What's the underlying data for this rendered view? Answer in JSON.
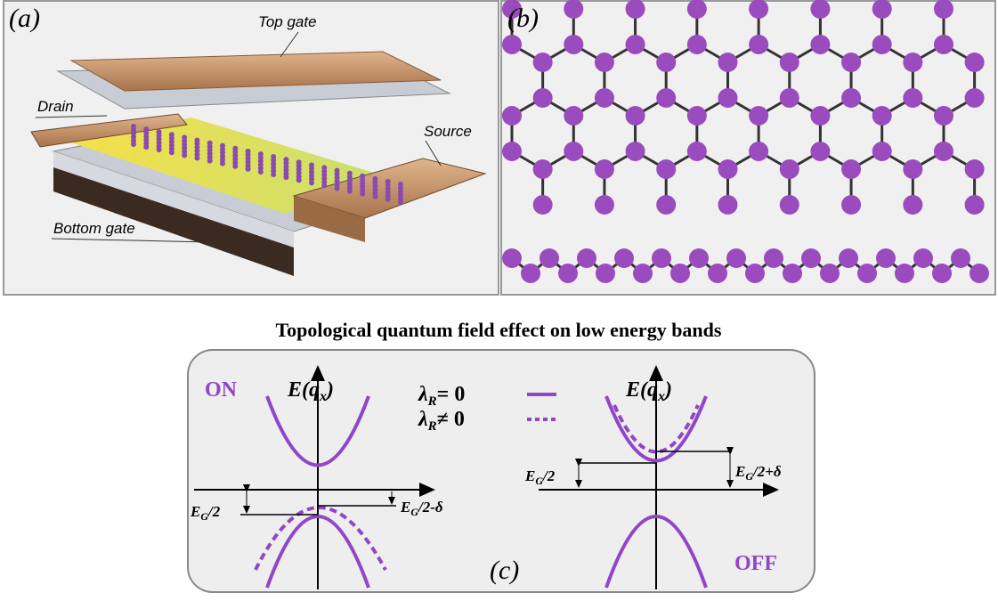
{
  "panel_a": {
    "label": "(a)",
    "top_gate": "Top gate",
    "drain": "Drain",
    "source": "Source",
    "bottom_gate": "Bottom gate"
  },
  "panel_b": {
    "label": "(b)"
  },
  "panel_c": {
    "title": "Topological quantum field effect on low energy bands",
    "label": "(c)",
    "axis_left": {
      "main": "E(q",
      "sub": "x",
      "tail": ")"
    },
    "axis_right": {
      "main": "E(q",
      "sub": "x",
      "tail": ")"
    },
    "on": "ON",
    "off": "OFF",
    "legend": [
      {
        "symbol": "λ",
        "sub": "R",
        "rest": "= 0"
      },
      {
        "symbol": "λ",
        "sub": "R",
        "rest": "≠ 0"
      }
    ],
    "gap_on": {
      "main": "E",
      "sub": "G",
      "tail": "/2"
    },
    "gap_on_shift": {
      "main": "E",
      "sub": "G",
      "tail": "/2-δ"
    },
    "gap_off": {
      "main": "E",
      "sub": "G",
      "tail": "/2"
    },
    "gap_off_shift": {
      "main": "E",
      "sub": "G",
      "tail": "/2+δ"
    }
  }
}
